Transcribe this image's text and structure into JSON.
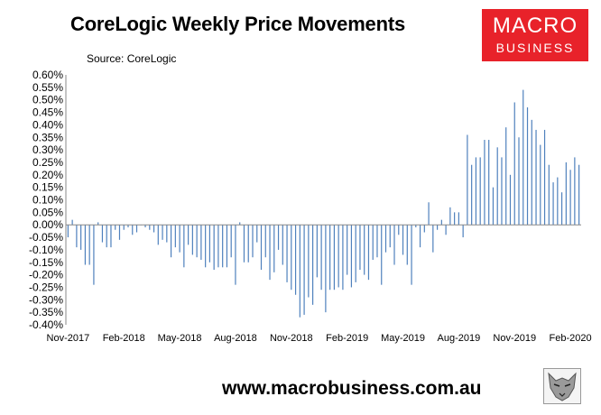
{
  "header": {
    "title": "CoreLogic Weekly Price Movements",
    "source": "Source: CoreLogic"
  },
  "logo": {
    "line1": "MACRO",
    "line2": "BUSINESS"
  },
  "footer": {
    "url": "www.macrobusiness.com.au"
  },
  "colors": {
    "bar": "#4f81bd",
    "logo_bg": "#e8222a"
  },
  "chart_data": {
    "type": "bar",
    "ylim": [
      -0.4,
      0.6
    ],
    "ytick_step": 0.05,
    "yticks_format": "percent_2dp",
    "grid": false,
    "legend": "none",
    "x_tick_labels": [
      {
        "index": 0,
        "label": "Nov-2017"
      },
      {
        "index": 13,
        "label": "Feb-2018"
      },
      {
        "index": 26,
        "label": "May-2018"
      },
      {
        "index": 39,
        "label": "Aug-2018"
      },
      {
        "index": 52,
        "label": "Nov-2018"
      },
      {
        "index": 65,
        "label": "Feb-2019"
      },
      {
        "index": 78,
        "label": "May-2019"
      },
      {
        "index": 91,
        "label": "Aug-2019"
      },
      {
        "index": 104,
        "label": "Nov-2019"
      },
      {
        "index": 117,
        "label": "Feb-2020"
      }
    ],
    "series": [
      {
        "values": [
          -0.05,
          0.02,
          -0.09,
          -0.1,
          -0.16,
          -0.16,
          -0.24,
          0.01,
          -0.07,
          -0.09,
          -0.09,
          -0.02,
          -0.06,
          -0.02,
          -0.01,
          -0.04,
          -0.03,
          0.0,
          -0.01,
          -0.02,
          -0.03,
          -0.08,
          -0.06,
          -0.07,
          -0.13,
          -0.09,
          -0.11,
          -0.17,
          -0.08,
          -0.12,
          -0.13,
          -0.14,
          -0.17,
          -0.15,
          -0.18,
          -0.17,
          -0.17,
          -0.17,
          -0.13,
          -0.24,
          0.01,
          -0.15,
          -0.15,
          -0.13,
          -0.07,
          -0.18,
          -0.13,
          -0.22,
          -0.19,
          -0.1,
          -0.16,
          -0.23,
          -0.26,
          -0.28,
          -0.37,
          -0.36,
          -0.29,
          -0.32,
          -0.21,
          -0.26,
          -0.35,
          -0.26,
          -0.26,
          -0.25,
          -0.26,
          -0.2,
          -0.25,
          -0.23,
          -0.18,
          -0.2,
          -0.22,
          -0.14,
          -0.13,
          -0.24,
          -0.11,
          -0.09,
          -0.16,
          -0.04,
          -0.12,
          -0.16,
          -0.24,
          -0.01,
          -0.09,
          -0.03,
          0.09,
          -0.11,
          -0.02,
          0.02,
          -0.04,
          0.07,
          0.05,
          0.05,
          -0.05,
          0.36,
          0.24,
          0.27,
          0.27,
          0.34,
          0.34,
          0.15,
          0.31,
          0.27,
          0.39,
          0.2,
          0.49,
          0.35,
          0.54,
          0.47,
          0.42,
          0.38,
          0.32,
          0.38,
          0.24,
          0.17,
          0.19,
          0.13,
          0.25,
          0.22,
          0.27,
          0.24
        ]
      }
    ]
  }
}
